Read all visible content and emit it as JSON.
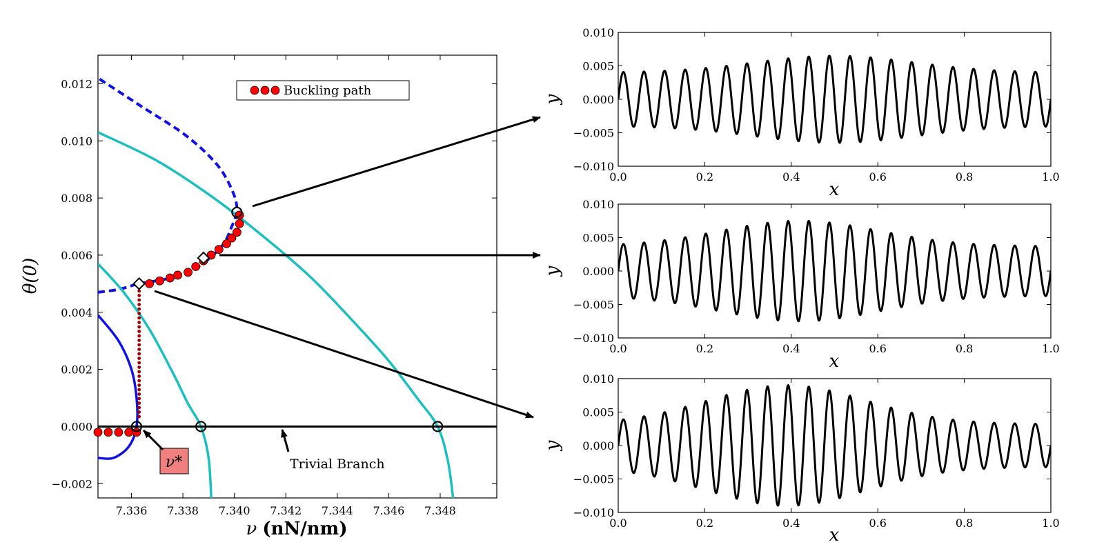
{
  "main_plot": {
    "xlabel_symbol": "ν",
    "xlabel_unit": "(nN/nm)",
    "ylabel": "θ(0)",
    "x_ticks": [
      "7.336",
      "7.338",
      "7.340",
      "7.342",
      "7.344",
      "7.346",
      "7.348"
    ],
    "y_ticks": [
      "−0.002",
      "0.000",
      "0.002",
      "0.004",
      "0.006",
      "0.008",
      "0.010",
      "0.012"
    ],
    "legend_label": "Buckling path",
    "annotation_nu_star": "ν*",
    "annotation_trivial": "Trivial Branch"
  },
  "side_plots": {
    "xlabel": "x",
    "ylabel": "y",
    "x_ticks": [
      "0.0",
      "0.2",
      "0.4",
      "0.6",
      "0.8",
      "1.0"
    ],
    "y_ticks": [
      "−0.010",
      "−0.005",
      "0.000",
      "0.005",
      "0.010"
    ]
  },
  "colors": {
    "buckling_marker": "#ff0000",
    "cyan_curve": "#1bbfbf",
    "blue_curve": "#1010e8",
    "black": "#000000",
    "nu_star_box": "#f08080"
  },
  "chart_data": [
    {
      "type": "line",
      "xlim": [
        7.3347,
        7.3502
      ],
      "ylim": [
        -0.0025,
        0.013
      ],
      "grid": false,
      "legend_position": "top-center",
      "series": [
        {
          "name": "Buckling path",
          "style": "red-dots",
          "points": [
            [
              7.3347,
              -0.0002
            ],
            [
              7.3351,
              -0.0002
            ],
            [
              7.3355,
              -0.0002
            ],
            [
              7.3359,
              -0.0002
            ],
            [
              7.3362,
              -0.0002
            ],
            [
              7.3363,
              0.0007
            ],
            [
              7.3363,
              0.0014
            ],
            [
              7.3363,
              0.0021
            ],
            [
              7.3363,
              0.0028
            ],
            [
              7.3363,
              0.0035
            ],
            [
              7.3363,
              0.0042
            ],
            [
              7.3363,
              0.0049
            ],
            [
              7.3367,
              0.005
            ],
            [
              7.3371,
              0.0051
            ],
            [
              7.3375,
              0.0052
            ],
            [
              7.3378,
              0.0053
            ],
            [
              7.3382,
              0.0054
            ],
            [
              7.3385,
              0.0056
            ],
            [
              7.3388,
              0.0058
            ],
            [
              7.3391,
              0.006
            ],
            [
              7.3394,
              0.0062
            ],
            [
              7.3397,
              0.0064
            ],
            [
              7.3399,
              0.0066
            ],
            [
              7.3401,
              0.0068
            ],
            [
              7.3402,
              0.0071
            ],
            [
              7.3402,
              0.0074
            ]
          ]
        },
        {
          "style": "blue-dashed",
          "points": [
            [
              7.3347,
              0.0047
            ],
            [
              7.3355,
              0.0048
            ],
            [
              7.3363,
              0.005
            ],
            [
              7.3375,
              0.0052
            ],
            [
              7.3386,
              0.0056
            ],
            [
              7.3395,
              0.0063
            ],
            [
              7.3399,
              0.007
            ],
            [
              7.3401,
              0.0076
            ],
            [
              7.3399,
              0.0083
            ],
            [
              7.3393,
              0.0092
            ],
            [
              7.3381,
              0.0102
            ],
            [
              7.3364,
              0.0112
            ],
            [
              7.3347,
              0.0122
            ]
          ]
        },
        {
          "style": "blue-solid",
          "points": [
            [
              7.3347,
              0.0039
            ],
            [
              7.3355,
              0.003
            ],
            [
              7.336,
              0.002
            ],
            [
              7.3362,
              0.001
            ],
            [
              7.3362,
              0.0
            ],
            [
              7.3359,
              -0.0007
            ],
            [
              7.3353,
              -0.0011
            ],
            [
              7.3347,
              -0.0011
            ]
          ]
        },
        {
          "style": "cyan-solid",
          "points": [
            [
              7.3347,
              0.0057
            ],
            [
              7.3357,
              0.0047
            ],
            [
              7.3367,
              0.0034
            ],
            [
              7.3376,
              0.0019
            ],
            [
              7.3382,
              0.0008
            ],
            [
              7.3387,
              0.0
            ],
            [
              7.339,
              -0.0011
            ],
            [
              7.3391,
              -0.0025
            ]
          ]
        },
        {
          "style": "cyan-solid",
          "points": [
            [
              7.3347,
              0.0103
            ],
            [
              7.337,
              0.0093
            ],
            [
              7.3392,
              0.008
            ],
            [
              7.3412,
              0.0066
            ],
            [
              7.343,
              0.0052
            ],
            [
              7.3446,
              0.0037
            ],
            [
              7.346,
              0.0023
            ],
            [
              7.3471,
              0.001
            ],
            [
              7.3479,
              0.0
            ],
            [
              7.3483,
              -0.0012
            ],
            [
              7.3485,
              -0.0025
            ]
          ]
        },
        {
          "name": "Trivial Branch",
          "style": "black-solid",
          "points": [
            [
              7.3347,
              0.0
            ],
            [
              7.3502,
              0.0
            ]
          ]
        }
      ],
      "open_circles": [
        [
          7.3362,
          0.0
        ],
        [
          7.3387,
          0.0
        ],
        [
          7.3479,
          0.0
        ],
        [
          7.3401,
          0.0075
        ]
      ],
      "diamonds": [
        [
          7.3363,
          0.005
        ],
        [
          7.3388,
          0.0059
        ]
      ]
    },
    {
      "type": "line",
      "xlim": [
        0,
        1
      ],
      "ylim": [
        -0.01,
        0.01
      ],
      "function": "y = A(x)·sin(2π·21x)",
      "amplitude_center": 0.5,
      "amplitude_min": 0.004,
      "amplitude_max": 0.0065
    },
    {
      "type": "line",
      "xlim": [
        0,
        1
      ],
      "ylim": [
        -0.01,
        0.01
      ],
      "function": "y = A(x)·sin(2π·21x)",
      "amplitude_center": 0.42,
      "amplitude_min": 0.0037,
      "amplitude_max": 0.0075
    },
    {
      "type": "line",
      "xlim": [
        0,
        1
      ],
      "ylim": [
        -0.01,
        0.01
      ],
      "function": "y = A(x)·sin(2π·21x)",
      "amplitude_center": 0.39,
      "amplitude_min": 0.0032,
      "amplitude_max": 0.009
    }
  ]
}
